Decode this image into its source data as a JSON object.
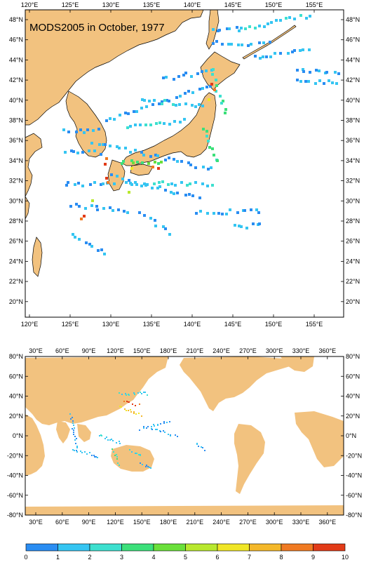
{
  "map_title": "MODS2005 in October, 1977",
  "colors": {
    "land": "#f2c27f",
    "ocean": "#ffffff",
    "colorbar": [
      "#1a5de8",
      "#2a8df2",
      "#35c5f2",
      "#3de0cf",
      "#3ce07a",
      "#6ae03a",
      "#b8e82e",
      "#f0e626",
      "#f4b82a",
      "#f07a22",
      "#e23b18"
    ]
  },
  "regional_map": {
    "lon_labels": [
      "120°E",
      "125°E",
      "130°E",
      "135°E",
      "140°E",
      "145°E",
      "150°E",
      "155°E"
    ],
    "lat_labels": [
      "48°N",
      "46°N",
      "44°N",
      "42°N",
      "40°N",
      "38°N",
      "36°N",
      "34°N",
      "32°N",
      "30°N",
      "28°N",
      "26°N",
      "24°N",
      "22°N",
      "20°N"
    ]
  },
  "global_map": {
    "lon_labels": [
      "30°E",
      "60°E",
      "90°E",
      "120°E",
      "150°E",
      "180°E",
      "210°E",
      "240°E",
      "270°E",
      "300°E",
      "330°E",
      "360°E"
    ],
    "lat_labels": [
      "80°N",
      "60°N",
      "40°N",
      "20°N",
      "0°N",
      "-20°N",
      "-40°N",
      "-60°N",
      "-80°N"
    ]
  },
  "colorbar": {
    "labels": [
      "0",
      "1",
      "2",
      "3",
      "4",
      "5",
      "6",
      "7",
      "8",
      "9",
      "10"
    ]
  }
}
